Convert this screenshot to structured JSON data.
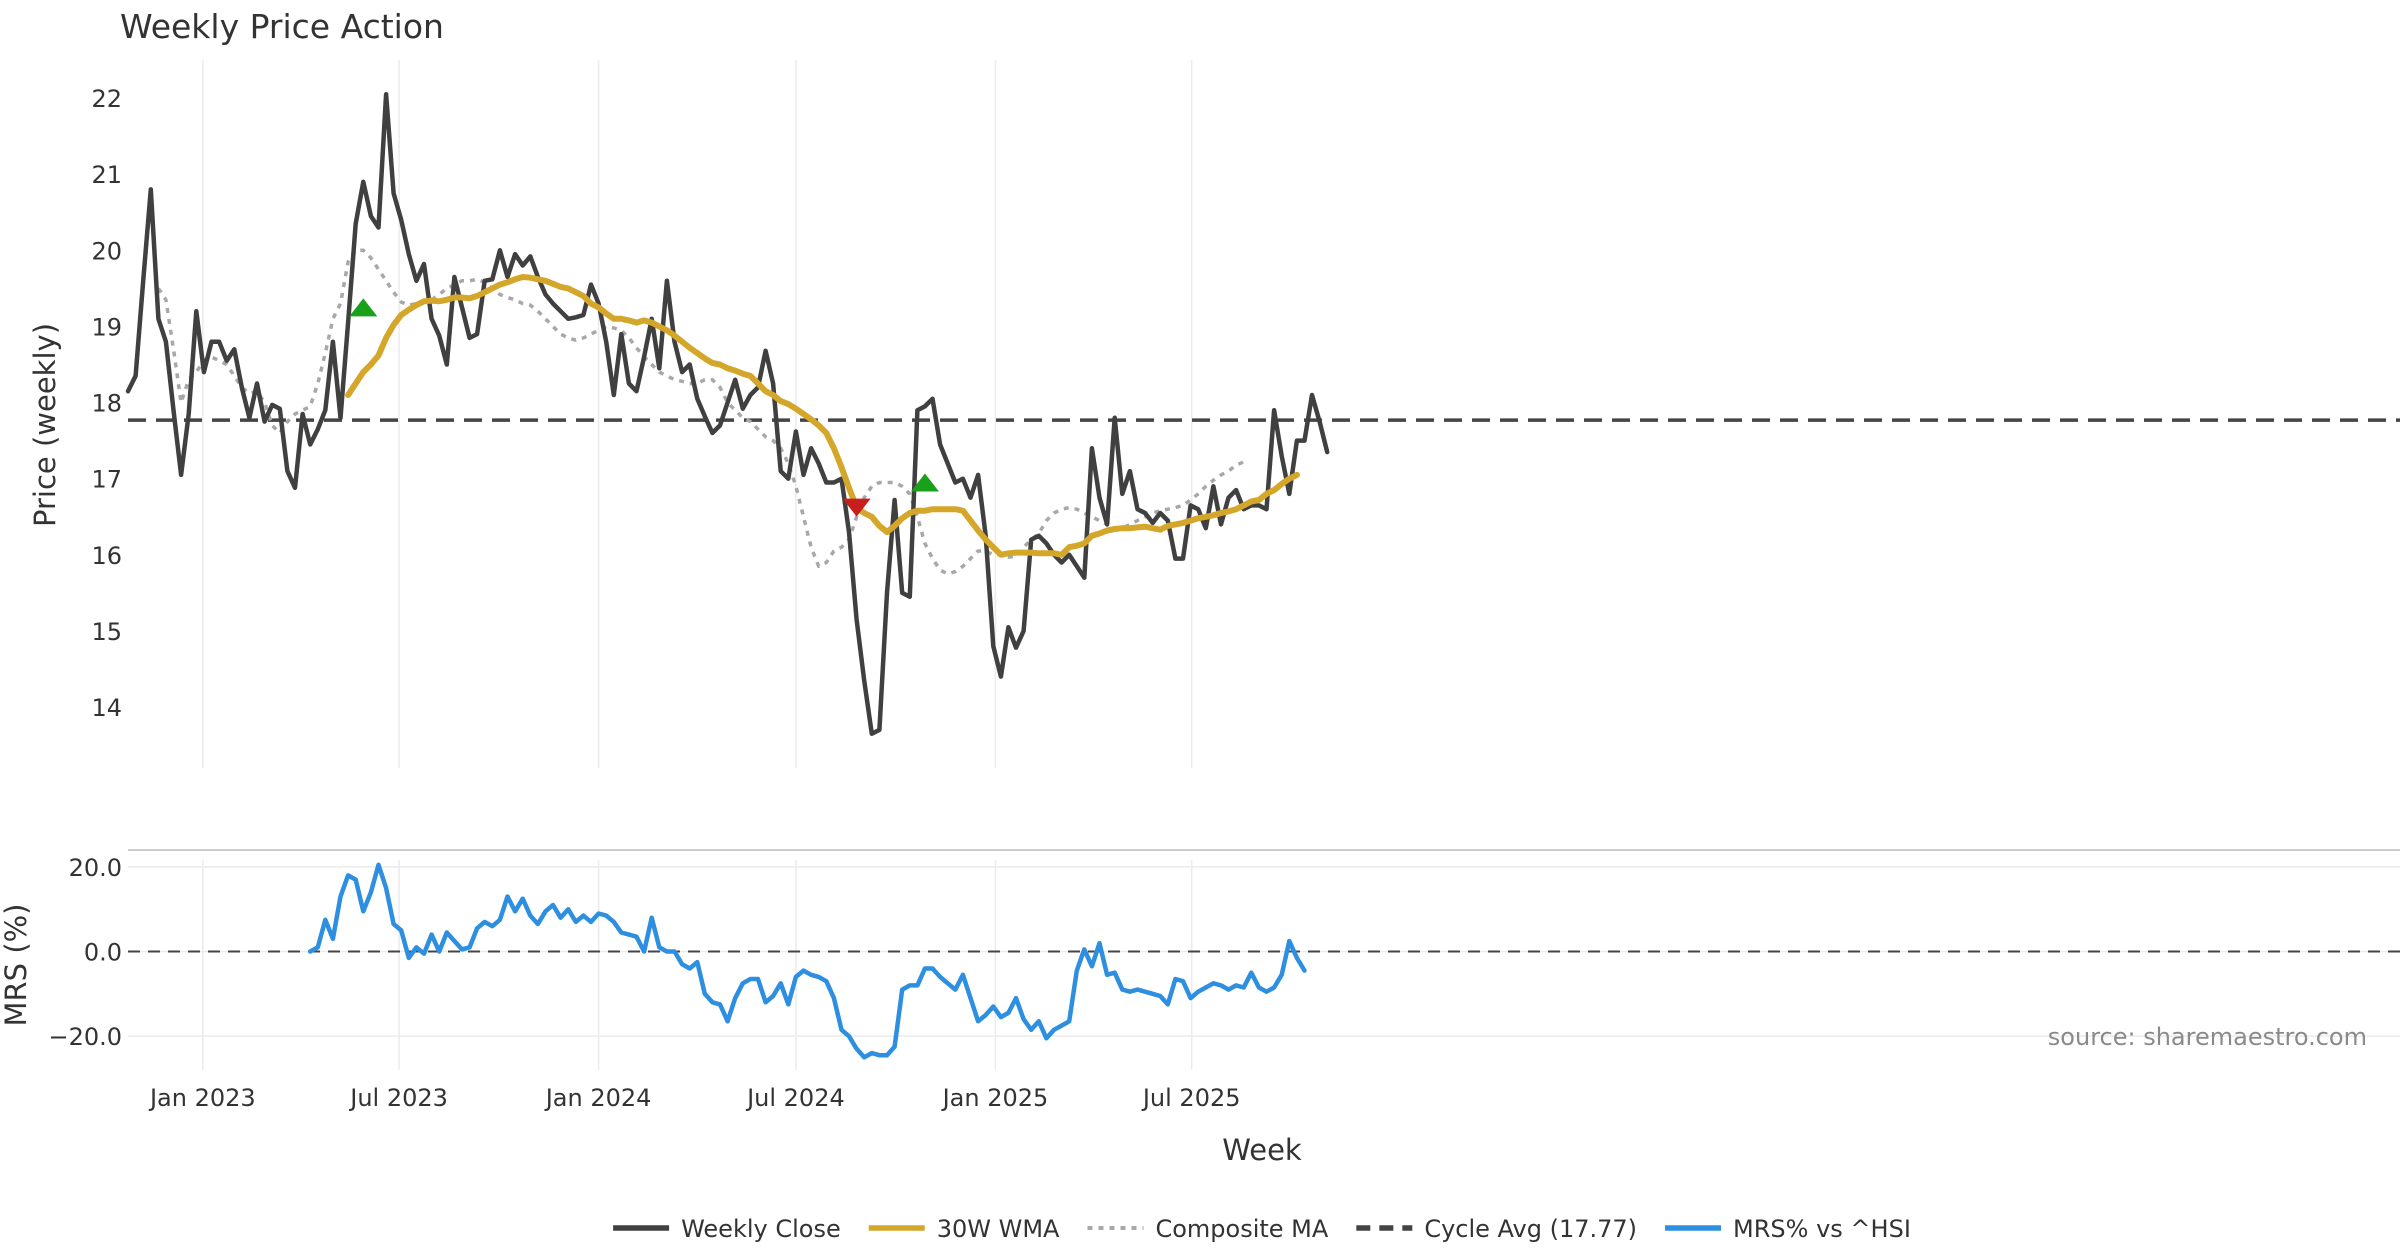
{
  "chart_data": {
    "type": "line",
    "title": "Weekly Price Action",
    "xlabel": "Week",
    "source": "source: sharemaestro.com",
    "x_start": "2022-10-24",
    "x_interval": "1 week",
    "x_ticks": [
      "Jan 2023",
      "Jul 2023",
      "Jan 2024",
      "Jul 2024",
      "Jan 2025",
      "Jul 2025"
    ],
    "legend_position": "bottom-center",
    "grid": "vertical",
    "price_panel": {
      "ylabel": "Price (weekly)",
      "ylim": [
        13.2,
        22.5
      ],
      "yticks": [
        14,
        15,
        16,
        17,
        18,
        19,
        20,
        21,
        22
      ],
      "series": [
        {
          "name": "Weekly Close",
          "color": "#404040",
          "style": "solid",
          "offset": 0,
          "values": [
            18.15,
            18.35,
            19.6,
            20.8,
            19.1,
            18.8,
            17.9,
            17.05,
            17.85,
            19.2,
            18.4,
            18.8,
            18.8,
            18.55,
            18.7,
            18.2,
            17.8,
            18.25,
            17.75,
            17.97,
            17.92,
            17.1,
            16.88,
            17.85,
            17.45,
            17.65,
            17.9,
            18.8,
            17.8,
            19.05,
            20.35,
            20.9,
            20.45,
            20.3,
            22.05,
            20.75,
            20.4,
            19.95,
            19.6,
            19.82,
            19.1,
            18.88,
            18.5,
            19.65,
            19.25,
            18.85,
            18.9,
            19.6,
            19.62,
            20.0,
            19.65,
            19.95,
            19.8,
            19.92,
            19.65,
            19.42,
            19.3,
            19.2,
            19.1,
            19.12,
            19.15,
            19.55,
            19.3,
            18.8,
            18.1,
            18.9,
            18.25,
            18.15,
            18.6,
            19.1,
            18.45,
            19.6,
            18.8,
            18.4,
            18.5,
            18.05,
            17.82,
            17.6,
            17.7,
            18.0,
            18.3,
            17.92,
            18.1,
            18.2,
            18.68,
            18.25,
            17.1,
            17.0,
            17.62,
            17.05,
            17.4,
            17.2,
            16.95,
            16.95,
            17.0,
            16.3,
            15.15,
            14.35,
            13.65,
            13.7,
            15.5,
            16.72,
            15.5,
            15.45,
            17.9,
            17.95,
            18.05,
            17.45,
            17.2,
            16.95,
            17.0,
            16.75,
            17.05,
            16.25,
            14.8,
            14.4,
            15.05,
            14.78,
            15.0,
            16.2,
            16.25,
            16.15,
            16.0,
            15.9,
            16.0,
            15.85,
            15.7,
            17.4,
            16.75,
            16.4,
            17.8,
            16.8,
            17.1,
            16.6,
            16.55,
            16.42,
            16.55,
            16.45,
            15.95,
            15.95,
            16.65,
            16.6,
            16.35,
            16.9,
            16.4,
            16.75,
            16.85,
            16.6,
            16.65,
            16.65,
            16.6,
            17.9,
            17.3,
            16.8,
            17.5,
            17.5,
            18.1,
            17.75,
            17.35
          ]
        },
        {
          "name": "30W WMA",
          "color": "#d4a62a",
          "style": "solid",
          "offset": 29,
          "values": [
            18.1,
            18.25,
            18.4,
            18.5,
            18.62,
            18.85,
            19.02,
            19.15,
            19.22,
            19.28,
            19.33,
            19.34,
            19.33,
            19.35,
            19.38,
            19.38,
            19.37,
            19.4,
            19.45,
            19.5,
            19.55,
            19.58,
            19.62,
            19.65,
            19.64,
            19.62,
            19.6,
            19.56,
            19.52,
            19.5,
            19.45,
            19.4,
            19.3,
            19.25,
            19.17,
            19.1,
            19.1,
            19.08,
            19.05,
            19.08,
            19.05,
            19.0,
            18.95,
            18.88,
            18.8,
            18.72,
            18.65,
            18.58,
            18.52,
            18.5,
            18.45,
            18.42,
            18.38,
            18.35,
            18.25,
            18.15,
            18.1,
            18.02,
            17.98,
            17.92,
            17.85,
            17.78,
            17.7,
            17.6,
            17.4,
            17.15,
            16.88,
            16.62,
            16.55,
            16.5,
            16.38,
            16.3,
            16.38,
            16.48,
            16.55,
            16.58,
            16.58,
            16.6,
            16.6,
            16.6,
            16.6,
            16.58,
            16.45,
            16.32,
            16.2,
            16.1,
            16.0,
            16.02,
            16.03,
            16.03,
            16.03,
            16.02,
            16.02,
            16.02,
            16.0,
            16.1,
            16.12,
            16.15,
            16.25,
            16.28,
            16.32,
            16.34,
            16.35,
            16.35,
            16.36,
            16.37,
            16.35,
            16.33,
            16.38,
            16.4,
            16.42,
            16.45,
            16.48,
            16.5,
            16.52,
            16.55,
            16.57,
            16.6,
            16.65,
            16.7,
            16.72,
            16.8,
            16.85,
            16.93,
            17.0,
            17.05
          ]
        },
        {
          "name": "Composite MA",
          "color": "#a8a8a8",
          "style": "dotted",
          "offset": 4,
          "values": [
            19.5,
            19.35,
            18.7,
            18.0,
            18.3,
            18.4,
            18.55,
            18.6,
            18.55,
            18.5,
            18.35,
            18.2,
            18.12,
            18.15,
            18.0,
            17.7,
            17.6,
            17.75,
            17.85,
            17.9,
            17.95,
            18.25,
            18.65,
            19.1,
            19.3,
            19.85,
            20.0,
            20.0,
            19.9,
            19.75,
            19.6,
            19.45,
            19.32,
            19.28,
            19.3,
            19.32,
            19.35,
            19.42,
            19.5,
            19.55,
            19.6,
            19.6,
            19.62,
            19.58,
            19.5,
            19.42,
            19.38,
            19.35,
            19.3,
            19.28,
            19.2,
            19.1,
            19.0,
            18.9,
            18.85,
            18.82,
            18.85,
            18.9,
            18.95,
            19.0,
            18.98,
            18.95,
            18.85,
            18.72,
            18.6,
            18.5,
            18.4,
            18.35,
            18.3,
            18.28,
            18.25,
            18.25,
            18.3,
            18.3,
            18.2,
            18.0,
            17.9,
            17.8,
            17.75,
            17.65,
            17.55,
            17.5,
            17.4,
            17.2,
            16.9,
            16.5,
            16.1,
            15.85,
            15.9,
            16.05,
            16.1,
            16.2,
            16.5,
            16.75,
            16.9,
            16.95,
            16.95,
            16.95,
            16.9,
            16.8,
            16.5,
            16.15,
            15.95,
            15.8,
            15.75,
            15.78,
            15.85,
            15.95,
            16.05,
            16.05,
            16.0,
            16.0,
            15.97,
            15.98,
            16.1,
            16.2,
            16.28,
            16.45,
            16.55,
            16.6,
            16.62,
            16.6,
            16.55,
            16.5,
            16.45,
            16.4,
            16.35,
            16.35,
            16.4,
            16.45,
            16.5,
            16.55,
            16.58,
            16.6,
            16.62,
            16.65,
            16.72,
            16.8,
            16.9,
            16.98,
            17.05,
            17.1,
            17.18,
            17.22
          ]
        },
        {
          "name": "Cycle Avg (17.77)",
          "color": "#444444",
          "style": "dashed",
          "value": 17.77
        }
      ],
      "signals": [
        {
          "type": "buy",
          "week_index": 31,
          "value": 19.25,
          "color": "#1aa01a"
        },
        {
          "type": "sell",
          "week_index": 96,
          "value": 16.62,
          "color": "#c81e1e"
        },
        {
          "type": "buy",
          "week_index": 105,
          "value": 16.95,
          "color": "#1aa01a"
        }
      ]
    },
    "mrs_panel": {
      "ylabel": "MRS (%)",
      "ylim": [
        -28,
        24
      ],
      "yticks": [
        20.0,
        0.0,
        -20.0
      ],
      "ytick_labels": [
        "20.0",
        "0.0",
        "−20.0"
      ],
      "baseline": 0,
      "series": [
        {
          "name": "MRS% vs ^HSI",
          "color": "#2e8fe0",
          "style": "solid",
          "offset": 24,
          "values": [
            0,
            1,
            7.5,
            3,
            13,
            18,
            17,
            9.5,
            14,
            20.5,
            15,
            6.5,
            5,
            -1.5,
            1,
            -0.5,
            4,
            0,
            4.5,
            2.5,
            0.5,
            1,
            5.5,
            7,
            6,
            7.5,
            13,
            9.5,
            12.5,
            8.5,
            6.5,
            9.5,
            11,
            8,
            10,
            7,
            8.5,
            7,
            9,
            8.5,
            7,
            4.5,
            4,
            3.5,
            0,
            8,
            1,
            0,
            0,
            -3,
            -4,
            -2.5,
            -10,
            -12,
            -12.5,
            -16.5,
            -11,
            -7.5,
            -6.5,
            -6.5,
            -12,
            -10.5,
            -7.5,
            -12.5,
            -6,
            -4.5,
            -5.5,
            -6,
            -7,
            -11,
            -18.5,
            -20,
            -23,
            -25,
            -24,
            -24.5,
            -24.5,
            -22.5,
            -9,
            -8,
            -8,
            -4,
            -4,
            -6,
            -7.5,
            -9,
            -5.5,
            -11,
            -16.5,
            -15,
            -13,
            -15.5,
            -14.5,
            -11,
            -16,
            -18.5,
            -16.5,
            -20.5,
            -18.5,
            -17.5,
            -16.5,
            -4.5,
            0.5,
            -3.5,
            2,
            -5.5,
            -5,
            -9,
            -9.5,
            -9,
            -9.5,
            -10,
            -10.5,
            -12.5,
            -6.5,
            -7,
            -11,
            -9.5,
            -8.5,
            -7.5,
            -8,
            -9,
            -8,
            -8.5,
            -5,
            -8.5,
            -9.5,
            -8.5,
            -5.5,
            2.5,
            -1.5,
            -4.5
          ]
        }
      ]
    },
    "legend": [
      {
        "label": "Weekly Close",
        "color": "#404040",
        "style": "solid"
      },
      {
        "label": "30W WMA",
        "color": "#d4a62a",
        "style": "solid"
      },
      {
        "label": "Composite MA",
        "color": "#a8a8a8",
        "style": "dotted"
      },
      {
        "label": "Cycle Avg (17.77)",
        "color": "#444444",
        "style": "dashed"
      },
      {
        "label": "MRS% vs ^HSI",
        "color": "#2e8fe0",
        "style": "solid"
      }
    ]
  }
}
